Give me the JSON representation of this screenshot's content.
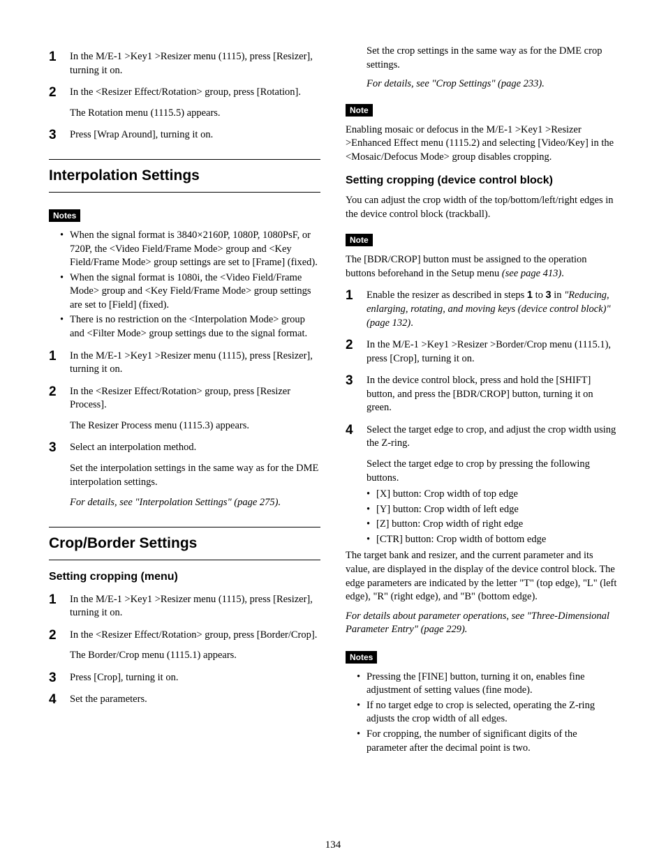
{
  "page_number": "134",
  "left": {
    "intro_steps": [
      {
        "text": "In the M/E-1 >Key1 >Resizer menu (1115), press [Resizer], turning it on."
      },
      {
        "text": "In the <Resizer Effect/Rotation> group, press [Rotation].",
        "sub": "The Rotation menu (1115.5) appears."
      },
      {
        "text": "Press [Wrap Around], turning it on."
      }
    ],
    "interp": {
      "heading": "Interpolation Settings",
      "notes_label": "Notes",
      "notes": [
        "When the signal format is 3840×2160P, 1080P, 1080PsF, or 720P, the <Video Field/Frame Mode> group and <Key Field/Frame Mode> group settings are set to [Frame] (fixed).",
        "When the signal format is 1080i, the <Video Field/Frame Mode> group and <Key Field/Frame Mode> group settings are set to [Field] (fixed).",
        "There is no restriction on the <Interpolation Mode> group and <Filter Mode> group settings due to the signal format."
      ],
      "steps": [
        {
          "text": "In the M/E-1 >Key1 >Resizer menu (1115), press [Resizer], turning it on."
        },
        {
          "text": "In the <Resizer Effect/Rotation> group, press [Resizer Process].",
          "sub": "The Resizer Process menu (1115.3) appears."
        },
        {
          "text": "Select an interpolation method.",
          "sub": "Set the interpolation settings in the same way as for the DME interpolation settings.",
          "ref": "For details, see \"Interpolation Settings\" (page 275)."
        }
      ]
    },
    "crop": {
      "heading": "Crop/Border Settings",
      "sub_heading": "Setting cropping (menu)",
      "steps": [
        {
          "text": "In the M/E-1 >Key1 >Resizer menu (1115), press [Resizer], turning it on."
        },
        {
          "text": "In the <Resizer Effect/Rotation> group, press [Border/Crop].",
          "sub": "The Border/Crop menu (1115.1) appears."
        },
        {
          "text": "Press [Crop], turning it on."
        },
        {
          "text": "Set the parameters."
        }
      ]
    }
  },
  "right": {
    "top_para1": "Set the crop settings in the same way as for the DME crop settings.",
    "top_ref": "For details, see \"Crop Settings\" (page 233).",
    "note1_label": "Note",
    "note1_text": "Enabling mosaic or defocus in the M/E-1 >Key1 >Resizer >Enhanced Effect menu (1115.2) and selecting [Video/Key] in the <Mosaic/Defocus Mode> group disables cropping.",
    "dcb": {
      "heading": "Setting cropping (device control block)",
      "intro": "You can adjust the crop width of the top/bottom/left/right edges in the device control block (trackball).",
      "note_label": "Note",
      "note_pre": "The [BDR/CROP] button must be assigned to the operation buttons beforehand in the Setup menu ",
      "note_ref": "(see page 413)",
      "period": ".",
      "steps": {
        "s1_pre": "Enable the resizer as described in steps ",
        "s1_b1": "1",
        "s1_mid": " to ",
        "s1_b3": "3",
        "s1_post": " in ",
        "s1_ref": "\"Reducing, enlarging, rotating, and moving keys (device control block)\" (page 132)",
        "s1_end": ".",
        "s2": "In the M/E-1 >Key1 >Resizer >Border/Crop menu (1115.1), press [Crop], turning it on.",
        "s3": "In the device control block, press and hold the [SHIFT] button, and press the [BDR/CROP] button, turning it on green.",
        "s4": "Select the target edge to crop, and adjust the crop width using the Z-ring.",
        "s4_sub": "Select the target edge to crop by pressing the following buttons.",
        "s4_bullets": [
          "[X] button: Crop width of top edge",
          "[Y] button: Crop width of left edge",
          "[Z] button: Crop width of right edge",
          "[CTR] button: Crop width of bottom edge"
        ],
        "s4_tail": "The target bank and resizer, and the current parameter and its value, are displayed in the display of the device control block. The edge parameters are indicated by the letter \"T\" (top edge), \"L\" (left edge), \"R\" (right edge), and \"B\" (bottom edge).",
        "s4_ref": "For details about parameter operations, see \"Three-Dimensional Parameter Entry\" (page 229)."
      },
      "notes_label": "Notes",
      "notes": [
        "Pressing the [FINE] button, turning it on, enables fine adjustment of setting values (fine mode).",
        "If no target edge to crop is selected, operating the Z-ring adjusts the crop width of all edges.",
        "For cropping, the number of significant digits of the parameter after the decimal point is two."
      ]
    }
  }
}
